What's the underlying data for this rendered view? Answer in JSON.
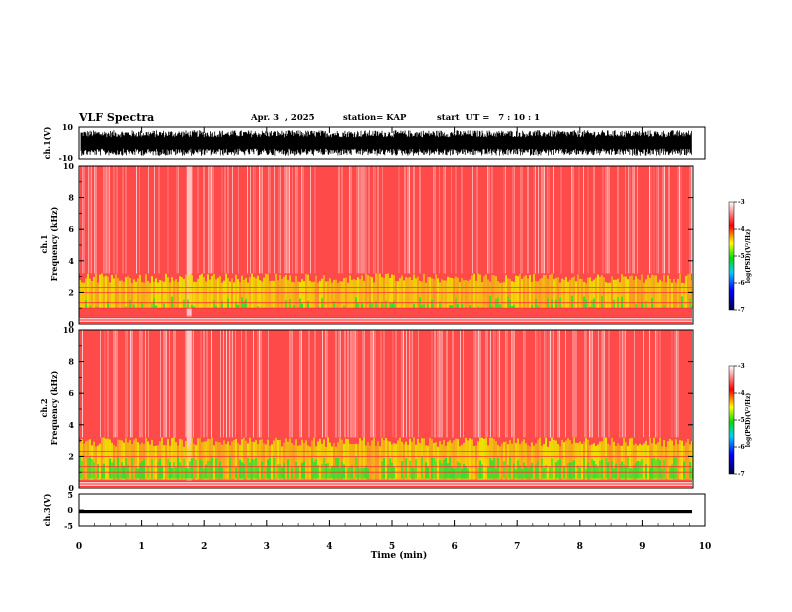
{
  "header": {
    "title": "VLF Spectra",
    "date": "Apr. 3  , 2025",
    "station": "station= KAP",
    "start": "start  UT =   7 : 10 : 1"
  },
  "colors": {
    "background": "#ffffff",
    "spectrogram_base": "#ff2020",
    "spectrogram_light": "#ffb0b0",
    "yellow": "#ffff00",
    "green": "#00e000",
    "colorbar_stops": [
      "#000060",
      "#0000ff",
      "#00e000",
      "#ffff00",
      "#ff0000",
      "#ffffff"
    ]
  },
  "chart_data": [
    {
      "type": "line",
      "panel": "ch1-waveform",
      "ylabel": "ch.1(V)",
      "ylim": [
        -10,
        10
      ],
      "y_tick_labels": [
        "10",
        "-10"
      ],
      "x_range": [
        0,
        10
      ],
      "series": [
        {
          "values_range": [
            -8,
            8
          ],
          "note_color": "#000000"
        }
      ]
    },
    {
      "type": "heatmap",
      "panel": "ch1-spectrogram",
      "ylabel": "ch.1\nFrequency (kHz)",
      "ylim": [
        0,
        10
      ],
      "y_tick_labels": [
        "0",
        "2",
        "4",
        "6",
        "8",
        "10"
      ],
      "x_range": [
        0,
        10
      ],
      "enhanced_band_khz": [
        1,
        3.2
      ],
      "colorbar": {
        "label": "log(PSD)(V²/Hz)",
        "range": [
          -7,
          -3
        ],
        "tick_labels": [
          "-3",
          "-4",
          "-5",
          "-6",
          "-7"
        ]
      }
    },
    {
      "type": "heatmap",
      "panel": "ch2-spectrogram",
      "ylabel": "ch.2\nFrequency (kHz)",
      "ylim": [
        0,
        10
      ],
      "y_tick_labels": [
        "0",
        "2",
        "4",
        "6",
        "8",
        "10"
      ],
      "x_range": [
        0,
        10
      ],
      "enhanced_band_khz": [
        0.5,
        3.2
      ],
      "colorbar": {
        "label": "log(PSD)(V²/Hz)",
        "range": [
          -7,
          -3
        ],
        "tick_labels": [
          "-3",
          "-4",
          "-5",
          "-6",
          "-7"
        ]
      }
    },
    {
      "type": "line",
      "panel": "ch3-waveform",
      "ylabel": "ch.3(V)",
      "ylim": [
        -5,
        5
      ],
      "y_tick_labels": [
        "5",
        "0",
        "-5"
      ],
      "x_range": [
        0,
        10
      ],
      "series": [
        {
          "values_range": [
            -1,
            0
          ],
          "note_color": "#000000"
        }
      ]
    }
  ],
  "x_axis": {
    "label": "Time (min)",
    "tick_labels": [
      "0",
      "1",
      "2",
      "3",
      "4",
      "5",
      "6",
      "7",
      "8",
      "9",
      "10"
    ],
    "xlim": [
      0,
      10
    ]
  }
}
